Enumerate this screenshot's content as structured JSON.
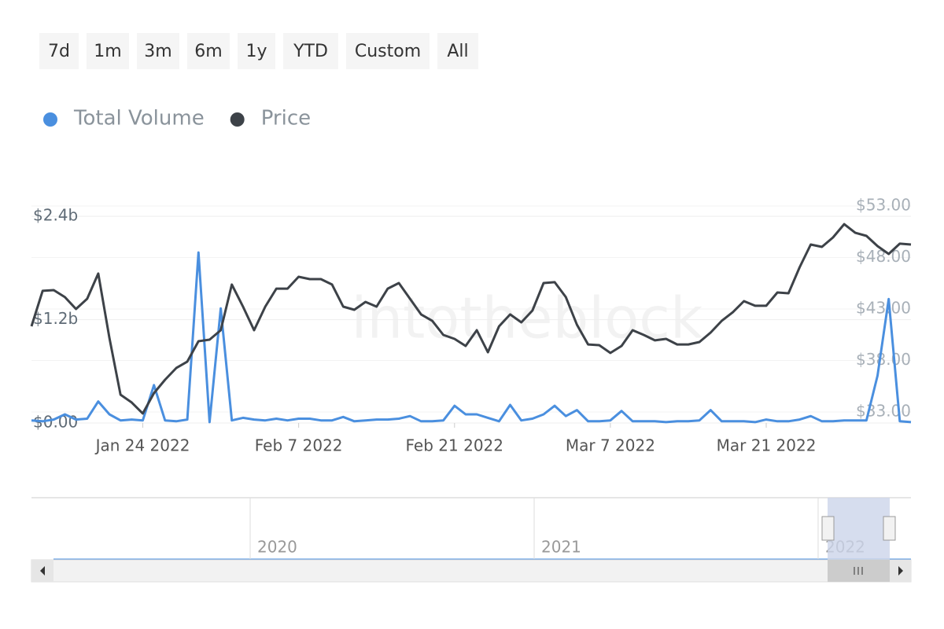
{
  "range_buttons": [
    "7d",
    "1m",
    "3m",
    "6m",
    "1y",
    "YTD",
    "Custom",
    "All"
  ],
  "watermark": "intotheblock",
  "navigator": {
    "labels": [
      "2020",
      "2021",
      "2022"
    ]
  },
  "chart_data": {
    "type": "line",
    "x": [
      "2022-01-14",
      "2022-01-15",
      "2022-01-16",
      "2022-01-17",
      "2022-01-18",
      "2022-01-19",
      "2022-01-20",
      "2022-01-21",
      "2022-01-22",
      "2022-01-23",
      "2022-01-24",
      "2022-01-25",
      "2022-01-26",
      "2022-01-27",
      "2022-01-28",
      "2022-01-29",
      "2022-01-30",
      "2022-01-31",
      "2022-02-01",
      "2022-02-02",
      "2022-02-03",
      "2022-02-04",
      "2022-02-05",
      "2022-02-06",
      "2022-02-07",
      "2022-02-08",
      "2022-02-09",
      "2022-02-10",
      "2022-02-11",
      "2022-02-12",
      "2022-02-13",
      "2022-02-14",
      "2022-02-15",
      "2022-02-16",
      "2022-02-17",
      "2022-02-18",
      "2022-02-19",
      "2022-02-20",
      "2022-02-21",
      "2022-02-22",
      "2022-02-23",
      "2022-02-24",
      "2022-02-25",
      "2022-02-26",
      "2022-02-27",
      "2022-02-28",
      "2022-03-01",
      "2022-03-02",
      "2022-03-03",
      "2022-03-04",
      "2022-03-05",
      "2022-03-06",
      "2022-03-07",
      "2022-03-08",
      "2022-03-09",
      "2022-03-10",
      "2022-03-11",
      "2022-03-12",
      "2022-03-13",
      "2022-03-14",
      "2022-03-15",
      "2022-03-16",
      "2022-03-17",
      "2022-03-18",
      "2022-03-19",
      "2022-03-20",
      "2022-03-21",
      "2022-03-22",
      "2022-03-23",
      "2022-03-24",
      "2022-03-25",
      "2022-03-26",
      "2022-03-27",
      "2022-03-28",
      "2022-03-29",
      "2022-03-30",
      "2022-03-31",
      "2022-04-01",
      "2022-04-02",
      "2022-04-03"
    ],
    "xticks": [
      {
        "value": "2022-01-24",
        "label": "Jan 24 2022"
      },
      {
        "value": "2022-02-07",
        "label": "Feb 7 2022"
      },
      {
        "value": "2022-02-21",
        "label": "Feb 21 2022"
      },
      {
        "value": "2022-03-07",
        "label": "Mar 7 2022"
      },
      {
        "value": "2022-03-21",
        "label": "Mar 21 2022"
      }
    ],
    "ylim": [
      0,
      2.52
    ],
    "yticks": [
      {
        "value": 0,
        "label": "$0.00"
      },
      {
        "value": 1.2,
        "label": "$1.2b"
      },
      {
        "value": 2.4,
        "label": "$2.4b"
      }
    ],
    "y2lim": [
      31.93,
      53
    ],
    "y2ticks": [
      {
        "value": 33,
        "label": "$33.00"
      },
      {
        "value": 38,
        "label": "$38.00"
      },
      {
        "value": 43,
        "label": "$43.00"
      },
      {
        "value": 48,
        "label": "$48.00"
      },
      {
        "value": 53,
        "label": "$53.00"
      }
    ],
    "grid": true,
    "series": [
      {
        "name": "Total Volume",
        "color": "#4a8fdf",
        "values": [
          0.03,
          0.02,
          0.04,
          0.1,
          0.04,
          0.05,
          0.25,
          0.1,
          0.03,
          0.04,
          0.03,
          0.44,
          0.03,
          0.02,
          0.04,
          1.98,
          0.01,
          1.33,
          0.03,
          0.06,
          0.04,
          0.03,
          0.05,
          0.03,
          0.05,
          0.05,
          0.03,
          0.03,
          0.07,
          0.02,
          0.03,
          0.04,
          0.04,
          0.05,
          0.08,
          0.02,
          0.02,
          0.03,
          0.2,
          0.1,
          0.1,
          0.06,
          0.02,
          0.21,
          0.03,
          0.05,
          0.1,
          0.2,
          0.08,
          0.15,
          0.02,
          0.02,
          0.03,
          0.14,
          0.02,
          0.02,
          0.02,
          0.01,
          0.02,
          0.02,
          0.03,
          0.15,
          0.02,
          0.02,
          0.02,
          0.01,
          0.04,
          0.02,
          0.02,
          0.04,
          0.08,
          0.02,
          0.02,
          0.03,
          0.03,
          0.03,
          0.55,
          1.44,
          0.02,
          0.01
        ]
      },
      {
        "name": "Price",
        "color": "#3d4248",
        "axis": "y2",
        "values": [
          41.32,
          44.76,
          44.83,
          44.15,
          43.0,
          43.99,
          46.44,
          40.18,
          34.68,
          33.92,
          32.85,
          34.83,
          36.13,
          37.27,
          37.89,
          39.87,
          40.02,
          40.94,
          45.37,
          43.23,
          40.94,
          43.23,
          44.98,
          44.98,
          46.13,
          45.9,
          45.9,
          45.37,
          43.23,
          42.92,
          43.69,
          43.23,
          44.98,
          45.52,
          43.99,
          42.47,
          41.85,
          40.48,
          40.1,
          39.41,
          40.94,
          38.8,
          41.32,
          42.47,
          41.7,
          42.85,
          45.52,
          45.6,
          44.15,
          41.47,
          39.56,
          39.49,
          38.73,
          39.41,
          40.94,
          40.48,
          39.95,
          40.1,
          39.56,
          39.56,
          39.79,
          40.71,
          41.85,
          42.69,
          43.76,
          43.31,
          43.31,
          44.6,
          44.53,
          47.05,
          49.26,
          49.03,
          49.95,
          51.24,
          50.4,
          50.1,
          49.11,
          48.34,
          49.34,
          49.26
        ]
      }
    ]
  }
}
